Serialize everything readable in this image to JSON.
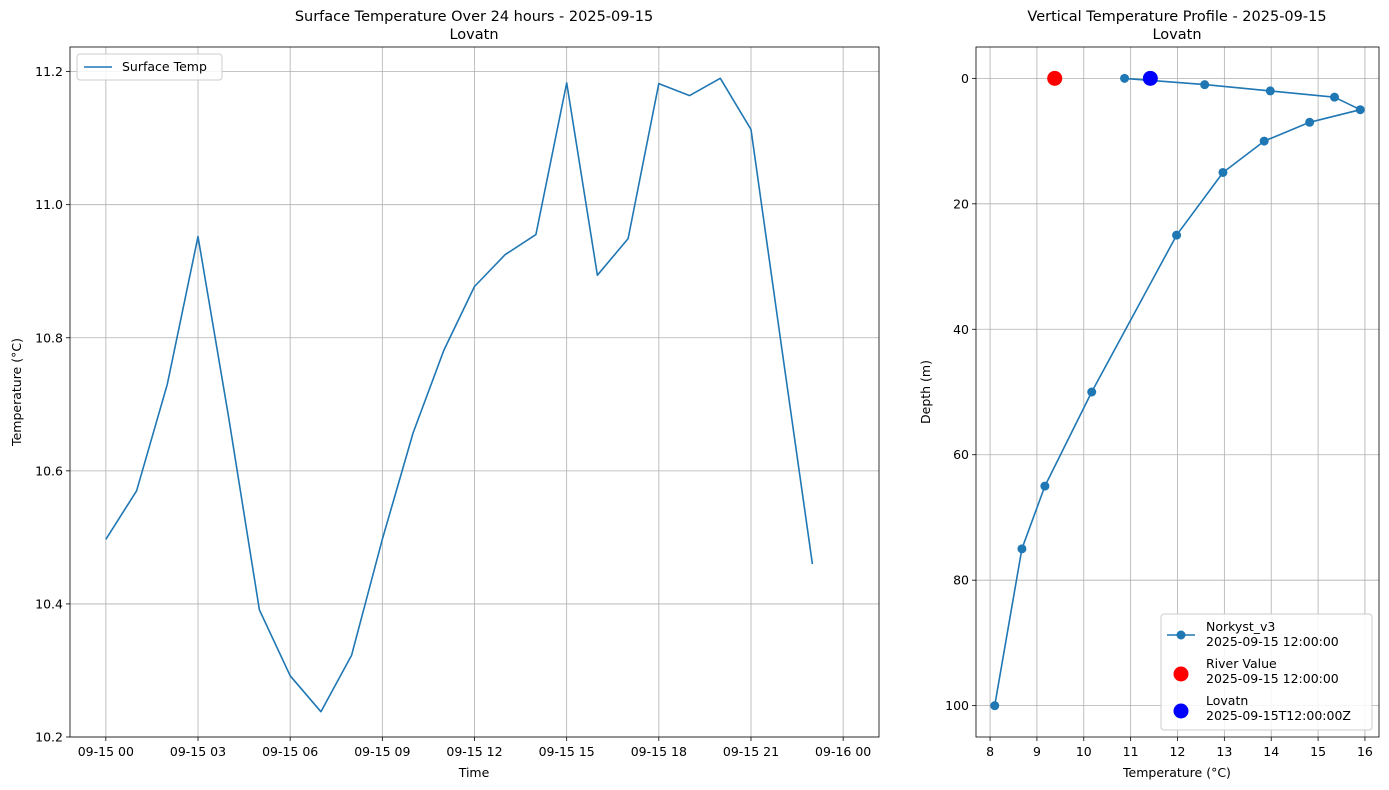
{
  "chart_data": [
    {
      "type": "line",
      "title": "Surface Temperature Over 24 hours - 2025-09-15",
      "subtitle": "Lovatn",
      "xlabel": "Time",
      "ylabel": "Temperature (°C)",
      "x_tick_labels": [
        "09-15 00",
        "09-15 03",
        "09-15 06",
        "09-15 09",
        "09-15 12",
        "09-15 15",
        "09-15 18",
        "09-15 21",
        "09-16 00"
      ],
      "y_tick_labels": [
        "10.2",
        "10.4",
        "10.6",
        "10.8",
        "11.0",
        "11.2"
      ],
      "xlim": [
        "2025-09-14 22:50",
        "2025-09-16 01:10"
      ],
      "ylim": [
        10.2,
        11.237
      ],
      "grid": true,
      "legend": {
        "location": "upper-left",
        "entries": [
          "Surface Temp"
        ]
      },
      "series": [
        {
          "name": "Surface Temp",
          "color": "#1f77b4",
          "x": [
            "2025-09-15 00:00",
            "2025-09-15 01:00",
            "2025-09-15 02:00",
            "2025-09-15 03:00",
            "2025-09-15 04:00",
            "2025-09-15 05:00",
            "2025-09-15 06:00",
            "2025-09-15 07:00",
            "2025-09-15 08:00",
            "2025-09-15 09:00",
            "2025-09-15 10:00",
            "2025-09-15 11:00",
            "2025-09-15 12:00",
            "2025-09-15 13:00",
            "2025-09-15 14:00",
            "2025-09-15 15:00",
            "2025-09-15 16:00",
            "2025-09-15 17:00",
            "2025-09-15 18:00",
            "2025-09-15 19:00",
            "2025-09-15 20:00",
            "2025-09-15 21:00",
            "2025-09-15 22:00",
            "2025-09-15 23:00"
          ],
          "y": [
            10.497,
            10.57,
            10.73,
            10.952,
            10.68,
            10.391,
            10.292,
            10.238,
            10.323,
            10.497,
            10.657,
            10.781,
            10.877,
            10.925,
            10.955,
            11.183,
            10.894,
            10.949,
            11.182,
            11.164,
            11.19,
            11.113,
            10.785,
            10.46
          ]
        }
      ]
    },
    {
      "type": "line",
      "title": "Vertical Temperature Profile - 2025-09-15",
      "subtitle": "Lovatn",
      "xlabel": "Temperature (°C)",
      "ylabel": "Depth (m)",
      "x_tick_labels": [
        "8",
        "9",
        "10",
        "11",
        "12",
        "13",
        "14",
        "15",
        "16"
      ],
      "y_tick_labels": [
        "0",
        "20",
        "40",
        "60",
        "80",
        "100"
      ],
      "xlim": [
        7.7,
        16.3
      ],
      "ylim": [
        105,
        -5
      ],
      "y_inverted": true,
      "grid": true,
      "legend": {
        "location": "lower-right",
        "entries": [
          {
            "line1": "Norkyst_v3",
            "line2": "2025-09-15 12:00:00"
          },
          {
            "line1": "River Value",
            "line2": "2025-09-15 12:00:00"
          },
          {
            "line1": "Lovatn",
            "line2": "2025-09-15T12:00:00Z"
          }
        ]
      },
      "series": [
        {
          "name": "Norkyst_v3",
          "color": "#1f77b4",
          "marker": "circle",
          "x": [
            10.87,
            12.58,
            13.98,
            15.35,
            15.9,
            14.82,
            13.85,
            12.97,
            11.98,
            10.17,
            9.17,
            8.68,
            8.1
          ],
          "y": [
            0,
            1,
            2,
            3,
            5,
            7,
            10,
            15,
            25,
            50,
            65,
            75,
            100
          ]
        },
        {
          "name": "River Value",
          "color": "#ff0000",
          "marker": "circle-large",
          "x": [
            9.38
          ],
          "y": [
            0
          ]
        },
        {
          "name": "Lovatn",
          "color": "#0000ff",
          "marker": "circle-large",
          "x": [
            11.42
          ],
          "y": [
            0
          ]
        }
      ]
    }
  ]
}
